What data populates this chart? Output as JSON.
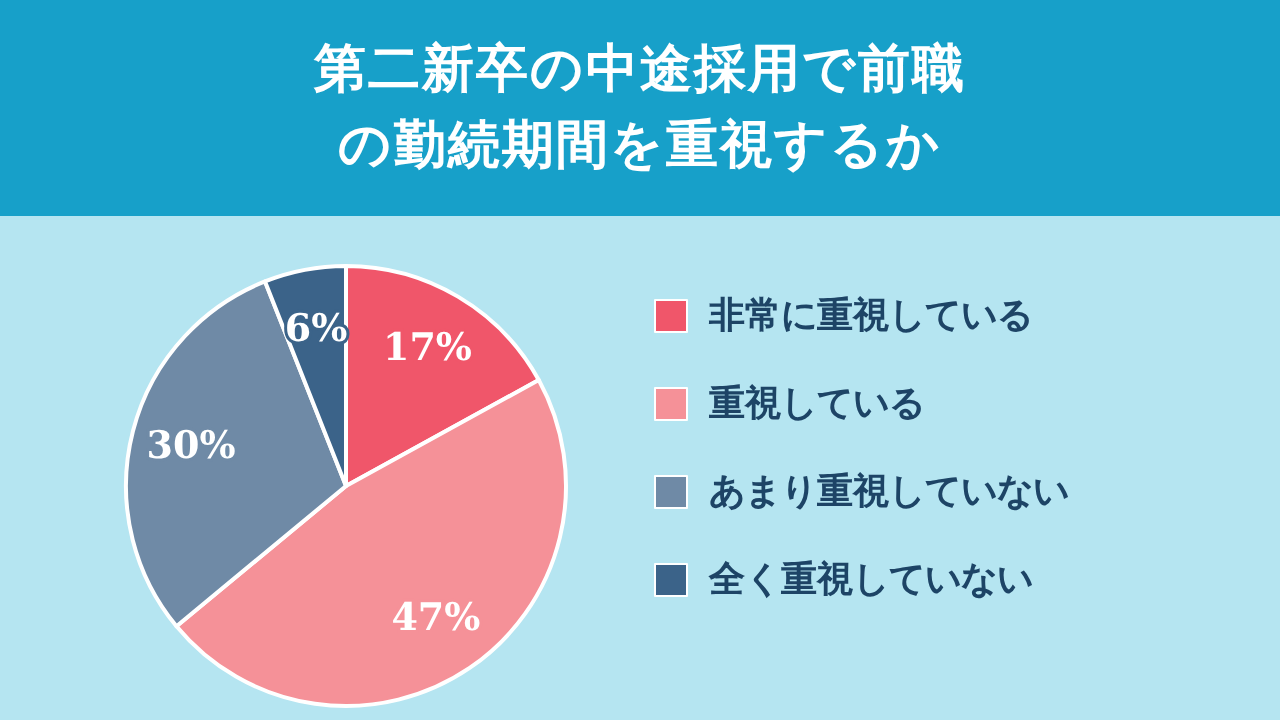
{
  "chart_data": {
    "type": "pie",
    "title": "第二新卒の中途採用で前職の勤続期間を重視するか",
    "categories": [
      "非常に重視している",
      "重視している",
      "あまり重視していない",
      "全く重視していない"
    ],
    "values": [
      17,
      47,
      30,
      6
    ],
    "value_labels": [
      "17%",
      "47%",
      "30%",
      "6%"
    ],
    "colors": [
      "#f0566a",
      "#f59198",
      "#6f8aa6",
      "#3b6389"
    ],
    "legend": "right"
  }
}
